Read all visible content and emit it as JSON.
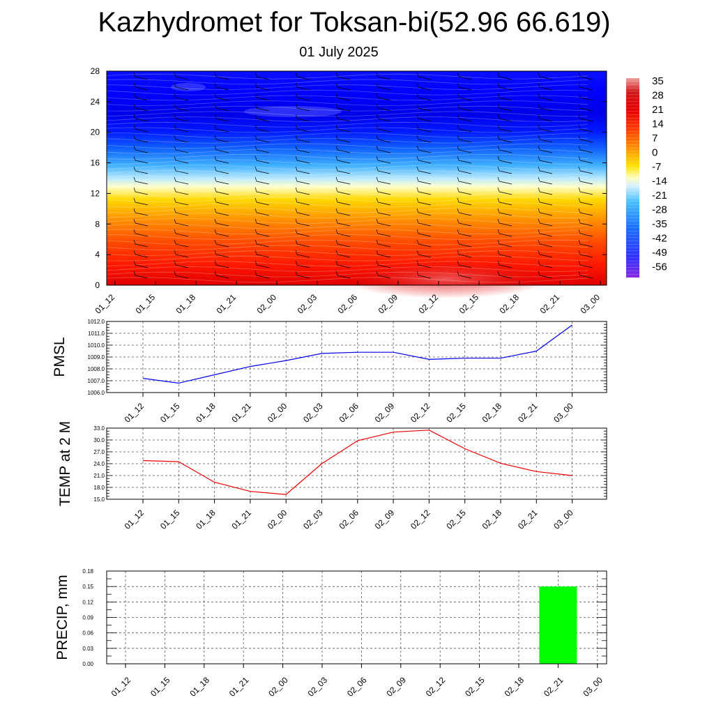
{
  "title": "Kazhydromet for Toksan-bi(52.96 66.619)",
  "subtitle": "01 July 2025",
  "colors": {
    "pmsl_line": "#0000ee",
    "temp_line": "#ee0000",
    "precip_bar": "#00ff00",
    "grid": "#555555"
  },
  "chart_data": [
    {
      "type": "heatmap",
      "name": "upper-air cross section",
      "x_ticks": [
        "01_12",
        "01_15",
        "01_18",
        "01_21",
        "02_00",
        "02_03",
        "02_06",
        "02_09",
        "02_12",
        "02_15",
        "02_18",
        "02_21",
        "03_00"
      ],
      "y_ticks": [
        0,
        4,
        8,
        12,
        16,
        20,
        24,
        28
      ],
      "ylim": [
        0,
        28
      ],
      "colorbar": {
        "labels": [
          "35",
          "28",
          "21",
          "14",
          "7",
          "0",
          "-7",
          "-14",
          "-21",
          "-28",
          "-35",
          "-42",
          "-49",
          "-56"
        ],
        "range": [
          -56,
          35
        ]
      },
      "wind_barbs": true
    },
    {
      "type": "line",
      "ylabel": "PMSL",
      "x": [
        "01_12",
        "01_15",
        "01_18",
        "01_21",
        "02_00",
        "02_03",
        "02_06",
        "02_09",
        "02_12",
        "02_15",
        "02_18",
        "02_21",
        "03_00"
      ],
      "series": [
        {
          "values": [
            1007.2,
            1006.8,
            1007.5,
            1008.2,
            1008.7,
            1009.3,
            1009.4,
            1009.4,
            1008.8,
            1008.9,
            1008.9,
            1009.5,
            1011.7
          ]
        }
      ],
      "y_ticks": [
        "1006.0",
        "1007.0",
        "1008.0",
        "1009.0",
        "1010.0",
        "1011.0",
        "1012.0"
      ],
      "ylim": [
        1006.0,
        1012.0
      ],
      "grid": true
    },
    {
      "type": "line",
      "ylabel": "TEMP at 2 M",
      "x": [
        "01_12",
        "01_15",
        "01_18",
        "01_21",
        "02_00",
        "02_03",
        "02_06",
        "02_09",
        "02_12",
        "02_15",
        "02_18",
        "02_21",
        "03_00"
      ],
      "series": [
        {
          "values": [
            24.8,
            24.5,
            19.3,
            17.0,
            16.2,
            24.0,
            29.8,
            32.0,
            32.5,
            27.8,
            24.1,
            22.0,
            21.0
          ]
        }
      ],
      "y_ticks": [
        "15.0",
        "18.0",
        "21.0",
        "24.0",
        "27.0",
        "30.0",
        "33.0"
      ],
      "ylim": [
        15.0,
        33.0
      ],
      "grid": true
    },
    {
      "type": "bar",
      "ylabel": "PRECIP, mm",
      "categories": [
        "01_12",
        "01_15",
        "01_18",
        "01_21",
        "02_00",
        "02_03",
        "02_06",
        "02_09",
        "02_12",
        "02_15",
        "02_18",
        "02_21",
        "03_00"
      ],
      "values": [
        0,
        0,
        0,
        0,
        0,
        0,
        0,
        0,
        0,
        0,
        0,
        0.15,
        0
      ],
      "y_ticks": [
        "0.00",
        "0.03",
        "0.06",
        "0.09",
        "0.12",
        "0.15",
        "0.18"
      ],
      "ylim": [
        0,
        0.18
      ],
      "grid": true
    }
  ]
}
